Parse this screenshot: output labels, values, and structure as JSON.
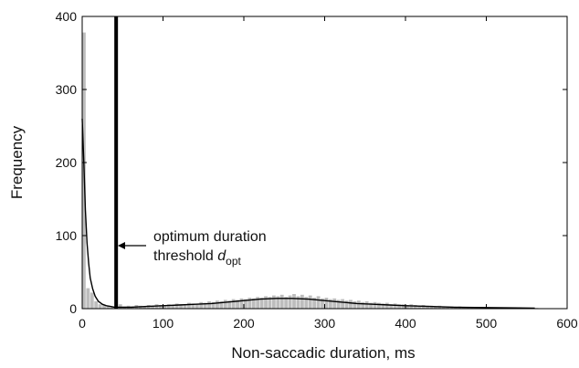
{
  "chart_data": {
    "type": "bar",
    "xlabel": "Non-saccadic duration, ms",
    "ylabel": "Frequency",
    "xlim": [
      0,
      600
    ],
    "ylim": [
      0,
      400
    ],
    "x_ticks": [
      0,
      100,
      200,
      300,
      400,
      500,
      600
    ],
    "y_ticks": [
      0,
      100,
      200,
      300,
      400
    ],
    "grid": false,
    "bin_width_ms": 5,
    "histogram": {
      "bin_start": [
        0,
        5,
        10,
        15,
        20,
        25,
        30,
        35,
        40,
        45,
        50,
        55,
        60,
        65,
        70,
        75,
        80,
        85,
        90,
        95,
        100,
        105,
        110,
        115,
        120,
        125,
        130,
        135,
        140,
        145,
        150,
        155,
        160,
        165,
        170,
        175,
        180,
        185,
        190,
        195,
        200,
        205,
        210,
        215,
        220,
        225,
        230,
        235,
        240,
        245,
        250,
        255,
        260,
        265,
        270,
        275,
        280,
        285,
        290,
        295,
        300,
        305,
        310,
        315,
        320,
        325,
        330,
        335,
        340,
        345,
        350,
        355,
        360,
        365,
        370,
        375,
        380,
        385,
        390,
        395,
        400,
        405,
        410,
        415,
        420,
        425,
        430,
        435,
        440,
        445,
        450,
        455,
        460,
        465,
        470,
        475,
        480,
        485,
        490,
        495,
        500,
        505,
        510,
        515,
        520,
        525,
        530,
        535,
        540,
        545,
        550,
        555,
        560,
        565
      ],
      "frequency": [
        378,
        28,
        22,
        10,
        6,
        5,
        4,
        3,
        3,
        6,
        3,
        4,
        3,
        5,
        4,
        3,
        5,
        4,
        6,
        5,
        4,
        6,
        5,
        7,
        6,
        5,
        8,
        7,
        6,
        9,
        8,
        10,
        9,
        11,
        10,
        12,
        11,
        13,
        12,
        14,
        13,
        15,
        14,
        16,
        15,
        17,
        16,
        18,
        17,
        19,
        16,
        18,
        20,
        17,
        19,
        16,
        18,
        15,
        17,
        14,
        15,
        13,
        14,
        12,
        13,
        11,
        12,
        10,
        11,
        9,
        10,
        8,
        9,
        8,
        7,
        8,
        6,
        7,
        6,
        6,
        5,
        6,
        5,
        4,
        5,
        4,
        4,
        3,
        4,
        3,
        3,
        3,
        2,
        3,
        2,
        2,
        2,
        2,
        1,
        2,
        1,
        1,
        1,
        1,
        1,
        1,
        1,
        1,
        1,
        0,
        1,
        0,
        1,
        0
      ]
    },
    "fit_curve": {
      "x": [
        0,
        2,
        4,
        6,
        8,
        10,
        13,
        16,
        20,
        25,
        30,
        35,
        40,
        45,
        50,
        60,
        80,
        100,
        120,
        140,
        160,
        180,
        200,
        220,
        240,
        260,
        280,
        300,
        320,
        340,
        360,
        380,
        400,
        430,
        460,
        500,
        540,
        560
      ],
      "y": [
        260,
        200,
        135,
        90,
        62,
        42,
        27,
        17,
        10,
        6,
        4,
        3,
        2,
        2,
        2,
        2,
        3,
        4,
        5,
        6,
        7,
        9,
        11,
        13,
        14,
        14,
        13,
        11,
        9,
        7,
        6,
        5,
        4,
        3,
        2,
        1.5,
        1,
        0.8
      ]
    },
    "threshold": {
      "x": 42,
      "label_line1": "optimum duration",
      "label_line2_prefix": "threshold ",
      "label_symbol": "d",
      "label_subscript": "opt"
    }
  }
}
